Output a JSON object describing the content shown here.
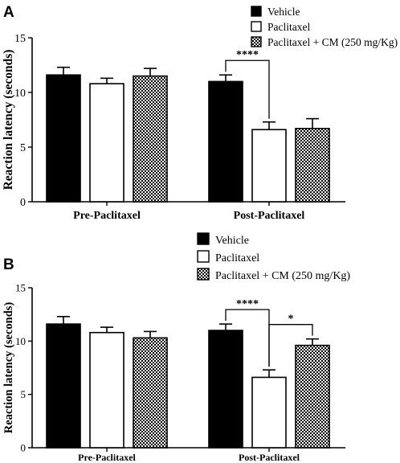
{
  "chart_data": [
    {
      "type": "bar",
      "panel": "A",
      "categories": [
        "Pre-Paclitaxel",
        "Post-Paclitaxel"
      ],
      "series": [
        {
          "name": "Vehicle",
          "values": [
            11.6,
            11.0
          ],
          "errors": [
            0.7,
            0.6
          ],
          "fill": "solid"
        },
        {
          "name": "Paclitaxel",
          "values": [
            10.8,
            6.6
          ],
          "errors": [
            0.5,
            0.7
          ],
          "fill": "white"
        },
        {
          "name": "Paclitaxel + CM (250 mg/Kg)",
          "values": [
            11.5,
            6.7
          ],
          "errors": [
            0.7,
            0.9
          ],
          "fill": "checker"
        }
      ],
      "ylabel": "Reaction latency (seconds)",
      "ylim": [
        0,
        15
      ],
      "yticks": [
        "0",
        "5",
        "10",
        "15"
      ],
      "significance": [
        {
          "category": "Post-Paclitaxel",
          "from": "Vehicle",
          "to": "Paclitaxel",
          "label": "****"
        }
      ],
      "legend": "top-right"
    },
    {
      "type": "bar",
      "panel": "B",
      "categories": [
        "Pre-Paclitaxel",
        "Post-Paclitaxel"
      ],
      "series": [
        {
          "name": "Vehicle",
          "values": [
            11.6,
            11.0
          ],
          "errors": [
            0.7,
            0.6
          ],
          "fill": "solid"
        },
        {
          "name": "Paclitaxel",
          "values": [
            10.8,
            6.6
          ],
          "errors": [
            0.5,
            0.7
          ],
          "fill": "white"
        },
        {
          "name": "Paclitaxel + CM (250 mg/Kg)",
          "values": [
            10.3,
            9.6
          ],
          "errors": [
            0.6,
            0.6
          ],
          "fill": "checker"
        }
      ],
      "ylabel": "Reaction latency (seconds)",
      "ylim": [
        0,
        15
      ],
      "yticks": [
        "0",
        "5",
        "10",
        "15"
      ],
      "significance": [
        {
          "category": "Post-Paclitaxel",
          "from": "Vehicle",
          "to": "Paclitaxel",
          "label": "****"
        },
        {
          "category": "Post-Paclitaxel",
          "from": "Paclitaxel",
          "to": "Paclitaxel + CM (250 mg/Kg)",
          "label": "*"
        }
      ],
      "legend": "top-right"
    }
  ]
}
